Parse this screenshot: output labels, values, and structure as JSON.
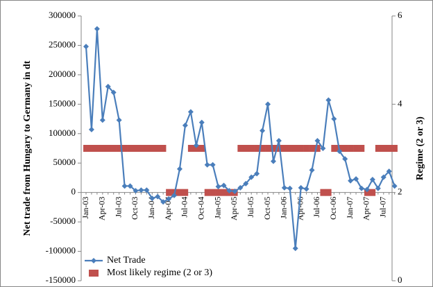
{
  "chart_data": {
    "type": "line",
    "ylabel": "Net trade from Hungary to Germany  in dt",
    "y2label": "Regime (2 or 3)",
    "categories": [
      "Jan-03",
      null,
      null,
      "Apr-03",
      null,
      null,
      "Jul-03",
      null,
      null,
      "Oct-03",
      null,
      null,
      "Jan-04",
      null,
      null,
      "Apr-04",
      null,
      null,
      "Jul-04",
      null,
      null,
      "Oct-04",
      null,
      null,
      "Jan-05",
      null,
      null,
      "Apr-05",
      null,
      null,
      "Jul-05",
      null,
      null,
      "Oct-05",
      null,
      null,
      "Jan-06",
      null,
      null,
      "Apr-06",
      null,
      null,
      "Jul-06",
      null,
      null,
      "Oct-06",
      null,
      null,
      "Jan-07",
      null,
      null,
      "Apr-07",
      null,
      null,
      "Jul-07",
      null,
      null
    ],
    "series": [
      {
        "name": "Net Trade",
        "type": "line",
        "color": "#4a7ebb",
        "values": [
          248000,
          107000,
          278000,
          123000,
          180000,
          170000,
          123000,
          11000,
          11000,
          3000,
          4000,
          4000,
          -10000,
          -7000,
          -16000,
          -11000,
          -5000,
          40000,
          114000,
          137000,
          80000,
          119000,
          47000,
          47000,
          10000,
          12000,
          3000,
          2000,
          8000,
          15000,
          26000,
          32000,
          105000,
          150000,
          53000,
          88000,
          8000,
          7000,
          -95000,
          8000,
          6000,
          38000,
          88000,
          75000,
          157000,
          125000,
          70000,
          57000,
          20000,
          23000,
          7000,
          5000,
          22000,
          7000,
          26000,
          36000,
          11000
        ]
      },
      {
        "name": "Most likely regime (2 or 3)",
        "type": "bar",
        "axis": "y2",
        "color": "#c0504d",
        "values": [
          3,
          3,
          3,
          3,
          3,
          3,
          3,
          3,
          3,
          3,
          3,
          3,
          3,
          3,
          3,
          2,
          2,
          2,
          2,
          3,
          3,
          3,
          2,
          2,
          2,
          2,
          2,
          2,
          3,
          3,
          3,
          3,
          3,
          3,
          3,
          3,
          3,
          3,
          3,
          3,
          3,
          3,
          3,
          2,
          2,
          3,
          3,
          3,
          3,
          3,
          3,
          2,
          2,
          3,
          3,
          3,
          3
        ]
      }
    ],
    "ylim": [
      -150000,
      300000
    ],
    "yticks": [
      -150000,
      -100000,
      -50000,
      0,
      50000,
      100000,
      150000,
      200000,
      250000,
      300000
    ],
    "y2lim": [
      0,
      6
    ],
    "y2ticks": [
      0,
      2,
      4,
      6
    ],
    "legend": "lower left"
  }
}
